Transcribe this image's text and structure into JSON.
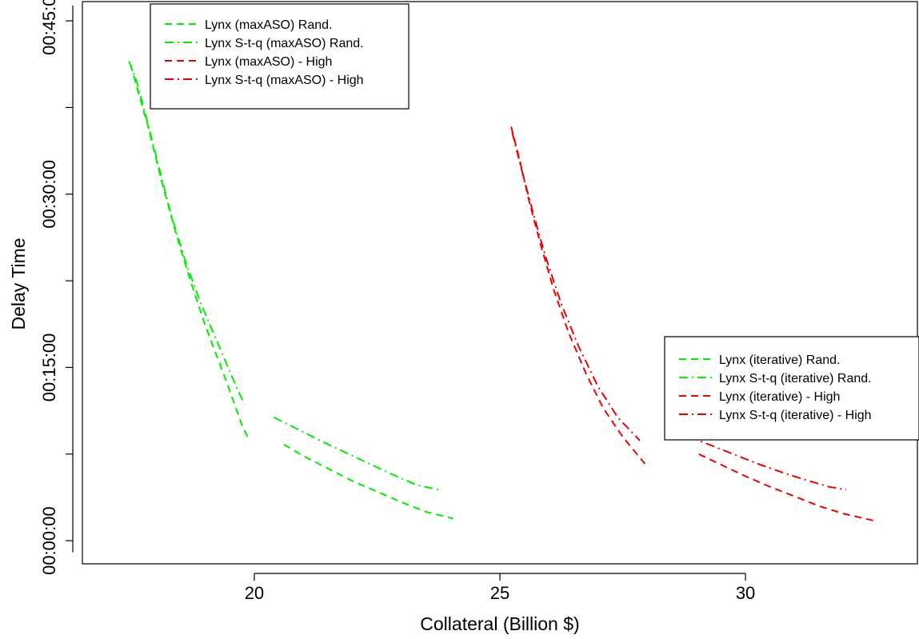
{
  "chart_data": {
    "type": "line",
    "title": "",
    "xlabel": "Collateral (Billion $)",
    "ylabel": "Delay Time",
    "xlim": [
      16.5,
      33.5
    ],
    "ylim": [
      -120,
      2800
    ],
    "xticks": [
      {
        "value": 20,
        "label": "20"
      },
      {
        "value": 25,
        "label": "25"
      },
      {
        "value": 30,
        "label": "30"
      }
    ],
    "yticks": [
      {
        "value": 0,
        "label": "00:00:00"
      },
      {
        "value": 900,
        "label": "00:15:00"
      },
      {
        "value": 1800,
        "label": "00:30:00"
      },
      {
        "value": 2700,
        "label": "00:45:00"
      }
    ],
    "y_units": "seconds (shown as hh:mm:ss)",
    "grid": false,
    "legends": [
      {
        "placement": "top-left",
        "entries": [
          {
            "label": "Lynx (maxASO) Rand.",
            "color": "#00ee00",
            "dash": "dashed"
          },
          {
            "label": "Lynx S-t-q (maxASO) Rand.",
            "color": "#00ee00",
            "dash": "dotdash"
          },
          {
            "label": "Lynx (maxASO) - High",
            "color": "#ee0000",
            "dash": "dashed"
          },
          {
            "label": "Lynx S-t-q (maxASO) - High",
            "color": "#ee0000",
            "dash": "dotdash"
          }
        ]
      },
      {
        "placement": "right",
        "entries": [
          {
            "label": "Lynx (iterative) Rand.",
            "color": "#00ee00",
            "dash": "dashed"
          },
          {
            "label": "Lynx S-t-q (iterative) Rand.",
            "color": "#00ee00",
            "dash": "dotdash"
          },
          {
            "label": "Lynx (iterative) - High",
            "color": "#ee0000",
            "dash": "dashed"
          },
          {
            "label": "Lynx S-t-q (iterative) - High",
            "color": "#ee0000",
            "dash": "dotdash"
          }
        ]
      }
    ],
    "series": [
      {
        "color": "#00ee00",
        "dash": "dashed",
        "points": [
          [
            17.48,
            2475
          ],
          [
            17.65,
            2320
          ],
          [
            17.85,
            2140
          ],
          [
            18.1,
            1880
          ],
          [
            18.4,
            1600
          ],
          [
            18.7,
            1350
          ],
          [
            19.0,
            1120
          ],
          [
            19.4,
            850
          ],
          [
            19.75,
            600
          ],
          [
            19.9,
            520
          ]
        ]
      },
      {
        "color": "#00ee00",
        "dash": "dotdash",
        "points": [
          [
            17.45,
            2490
          ],
          [
            17.6,
            2390
          ],
          [
            17.8,
            2200
          ],
          [
            18.05,
            1950
          ],
          [
            18.3,
            1700
          ],
          [
            18.6,
            1450
          ],
          [
            18.9,
            1240
          ],
          [
            19.3,
            1000
          ],
          [
            19.65,
            790
          ],
          [
            19.8,
            710
          ]
        ]
      },
      {
        "color": "#ee0000",
        "dash": "dashed",
        "points": [
          [
            25.23,
            2150
          ],
          [
            25.4,
            1980
          ],
          [
            25.6,
            1760
          ],
          [
            25.85,
            1520
          ],
          [
            26.1,
            1300
          ],
          [
            26.4,
            1080
          ],
          [
            26.75,
            870
          ],
          [
            27.1,
            690
          ],
          [
            27.5,
            540
          ],
          [
            27.95,
            400
          ]
        ]
      },
      {
        "color": "#ee0000",
        "dash": "dotdash",
        "points": [
          [
            25.25,
            2120
          ],
          [
            25.45,
            1920
          ],
          [
            25.7,
            1680
          ],
          [
            25.95,
            1460
          ],
          [
            26.25,
            1230
          ],
          [
            26.6,
            1010
          ],
          [
            27.0,
            800
          ],
          [
            27.4,
            640
          ],
          [
            27.85,
            520
          ]
        ]
      },
      {
        "color": "#00ee00",
        "dash": "dashed",
        "points": [
          [
            20.6,
            500
          ],
          [
            21.0,
            440
          ],
          [
            21.5,
            375
          ],
          [
            22.0,
            310
          ],
          [
            22.5,
            255
          ],
          [
            23.0,
            200
          ],
          [
            23.5,
            150
          ],
          [
            24.05,
            115
          ]
        ]
      },
      {
        "color": "#00ee00",
        "dash": "dotdash",
        "points": [
          [
            20.4,
            640
          ],
          [
            20.8,
            590
          ],
          [
            21.3,
            525
          ],
          [
            21.8,
            465
          ],
          [
            22.3,
            405
          ],
          [
            22.8,
            345
          ],
          [
            23.3,
            290
          ],
          [
            23.75,
            265
          ]
        ]
      },
      {
        "color": "#ee0000",
        "dash": "dashed",
        "points": [
          [
            29.05,
            450
          ],
          [
            29.5,
            395
          ],
          [
            30.0,
            335
          ],
          [
            30.5,
            280
          ],
          [
            31.0,
            230
          ],
          [
            31.5,
            180
          ],
          [
            32.0,
            140
          ],
          [
            32.6,
            105
          ]
        ]
      },
      {
        "color": "#ee0000",
        "dash": "dotdash",
        "points": [
          [
            28.85,
            540
          ],
          [
            29.3,
            495
          ],
          [
            29.8,
            445
          ],
          [
            30.3,
            395
          ],
          [
            30.8,
            350
          ],
          [
            31.3,
            310
          ],
          [
            31.7,
            280
          ],
          [
            32.05,
            265
          ]
        ]
      }
    ]
  }
}
